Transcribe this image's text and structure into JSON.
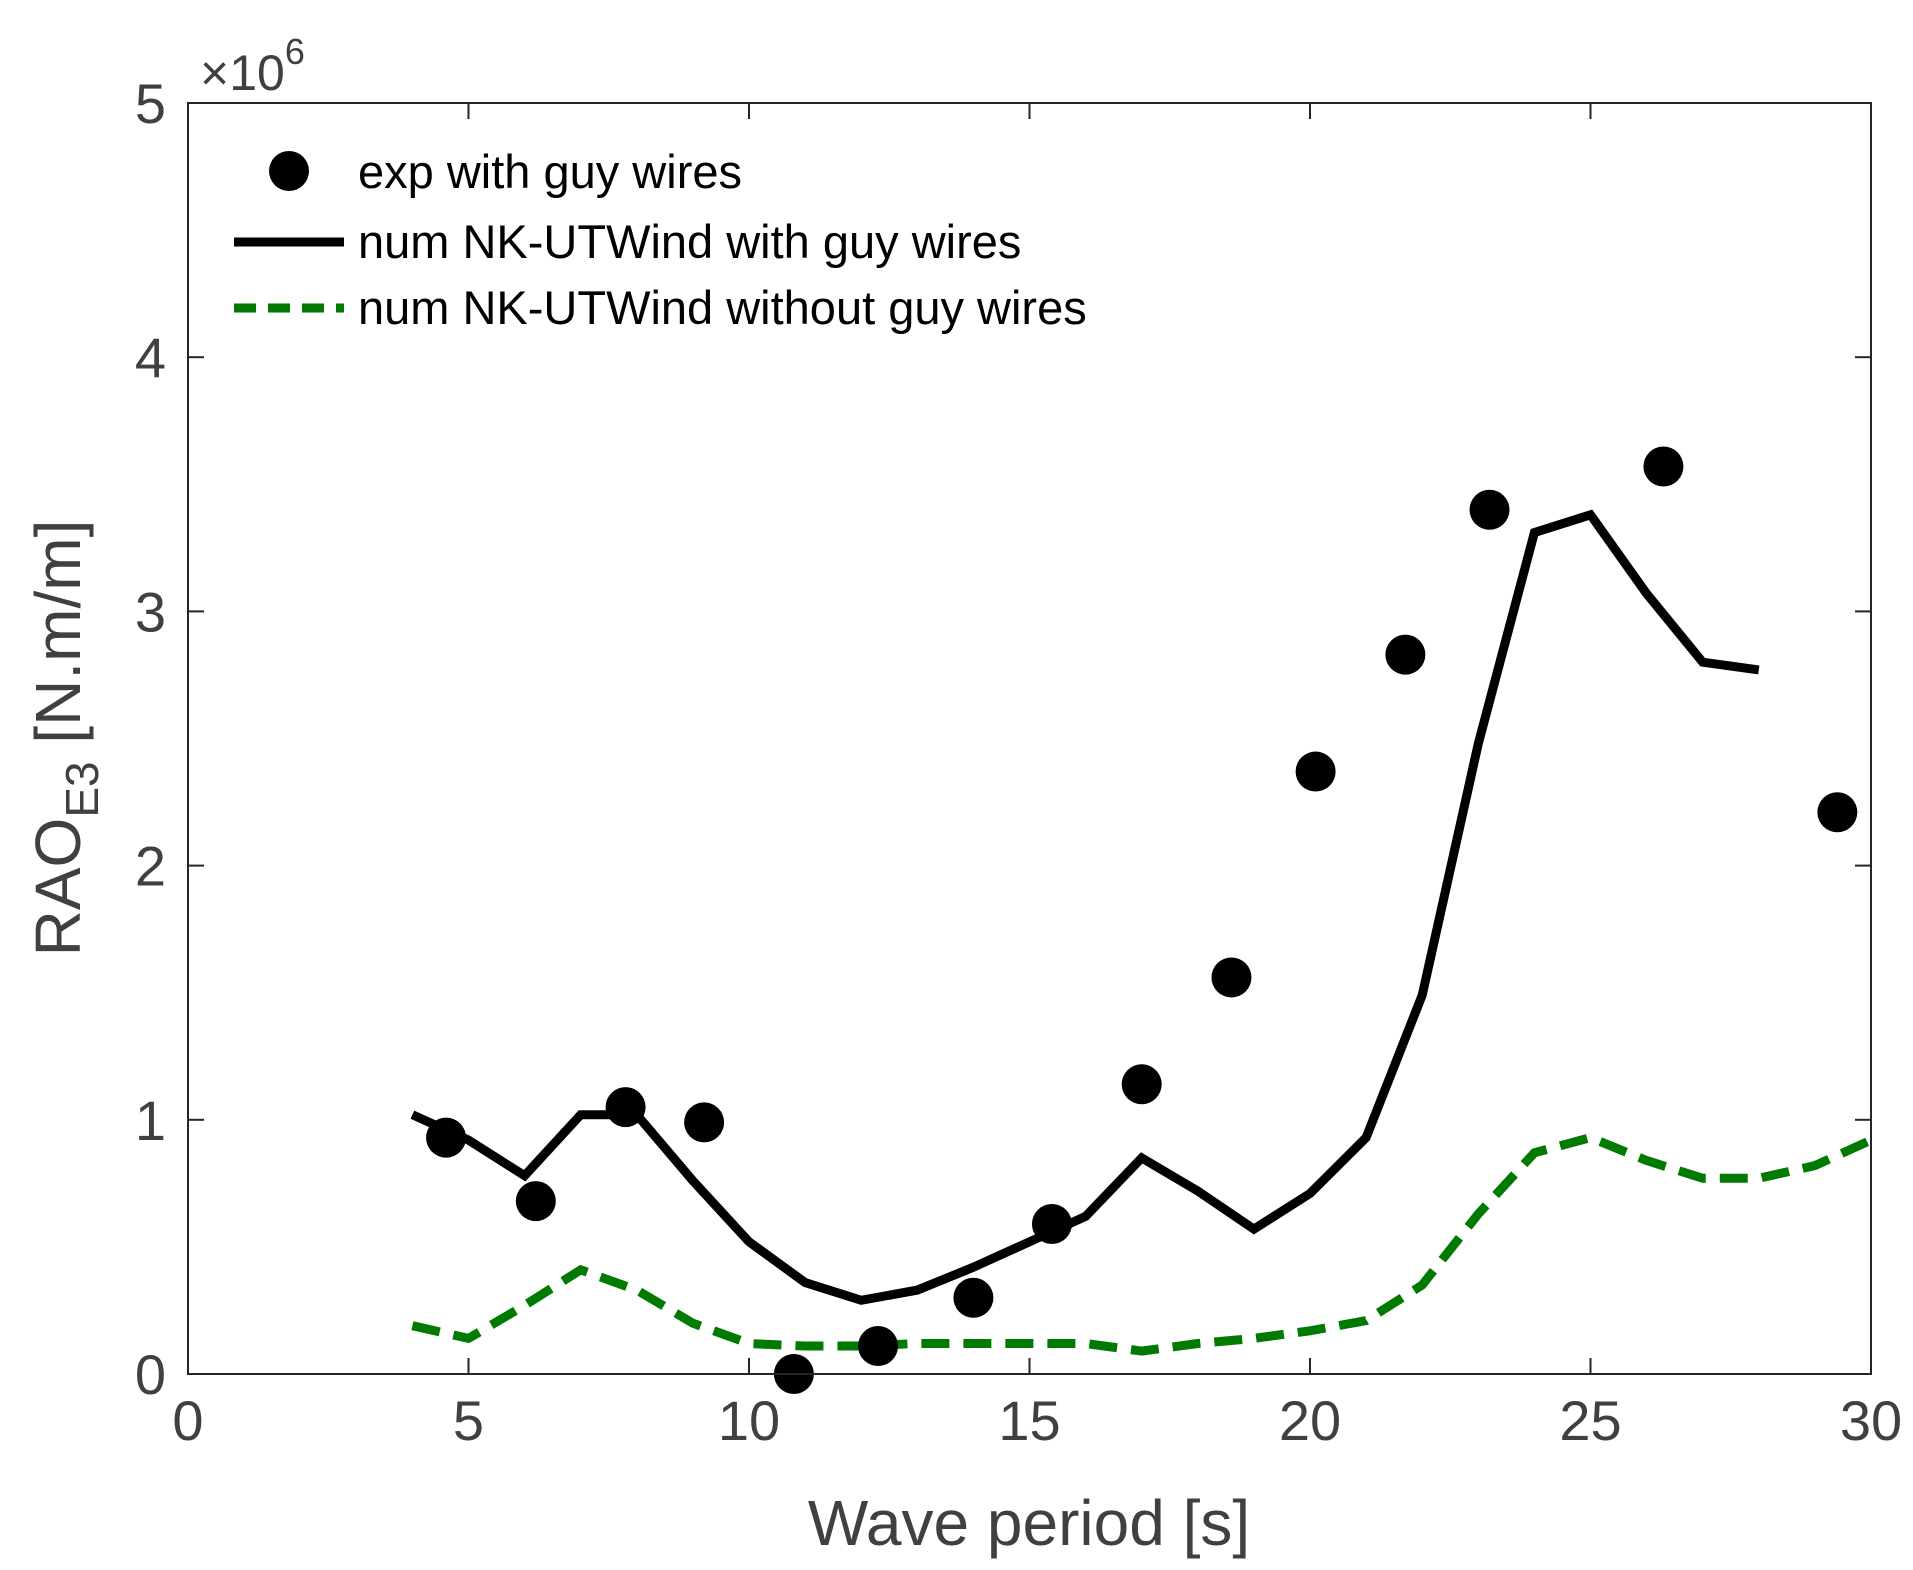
{
  "chart_data": {
    "type": "line",
    "title": "",
    "xlabel": "Wave period [s]",
    "ylabel_main": "RAO",
    "ylabel_sub": "E3",
    "ylabel_unit": " [N.m/m]",
    "xlim": [
      0,
      30
    ],
    "ylim": [
      0,
      5
    ],
    "x_ticks": [
      0,
      5,
      10,
      15,
      20,
      25,
      30
    ],
    "x_tick_labels": [
      "0",
      "5",
      "10",
      "15",
      "20",
      "25",
      "30"
    ],
    "y_ticks": [
      0,
      1,
      2,
      3,
      4,
      5
    ],
    "y_tick_labels": [
      "0",
      "1",
      "2",
      "3",
      "4",
      "5"
    ],
    "y_multiplier_prefix": "×10",
    "y_multiplier_exp": "6",
    "grid": false,
    "legend_position": "top-left",
    "series": [
      {
        "name": "exp with guy wires",
        "style": "markers",
        "color": "#000000",
        "x": [
          4.6,
          6.2,
          7.8,
          9.2,
          10.8,
          12.3,
          14.0,
          15.4,
          17.0,
          18.6,
          20.1,
          21.7,
          23.2,
          26.3,
          29.4
        ],
        "y": [
          0.93,
          0.68,
          1.05,
          0.99,
          0.0,
          0.11,
          0.3,
          0.59,
          1.14,
          1.56,
          2.37,
          2.83,
          3.4,
          3.57,
          2.21
        ]
      },
      {
        "name": "num NK-UTWind with guy wires",
        "style": "solid",
        "color": "#000000",
        "x": [
          4,
          5,
          6,
          7,
          8,
          9,
          10,
          11,
          12,
          13,
          14,
          15,
          16,
          17,
          18,
          19,
          20,
          21,
          22,
          23,
          24,
          25,
          26,
          27,
          28
        ],
        "y": [
          1.02,
          0.92,
          0.78,
          1.02,
          1.02,
          0.76,
          0.52,
          0.36,
          0.29,
          0.33,
          0.42,
          0.52,
          0.62,
          0.85,
          0.72,
          0.57,
          0.71,
          0.93,
          1.49,
          2.48,
          3.31,
          3.38,
          3.07,
          2.8,
          2.77
        ]
      },
      {
        "name": "num NK-UTWind without guy wires",
        "style": "dashed",
        "color": "#007a00",
        "x": [
          4,
          5,
          6,
          7,
          8,
          9,
          10,
          11,
          12,
          13,
          14,
          15,
          16,
          17,
          18,
          19,
          20,
          21,
          22,
          23,
          24,
          25,
          26,
          27,
          28,
          29,
          30
        ],
        "y": [
          0.19,
          0.14,
          0.27,
          0.41,
          0.33,
          0.2,
          0.12,
          0.11,
          0.11,
          0.12,
          0.12,
          0.12,
          0.12,
          0.09,
          0.12,
          0.14,
          0.17,
          0.21,
          0.35,
          0.63,
          0.87,
          0.93,
          0.84,
          0.77,
          0.77,
          0.82,
          0.92
        ]
      }
    ]
  }
}
